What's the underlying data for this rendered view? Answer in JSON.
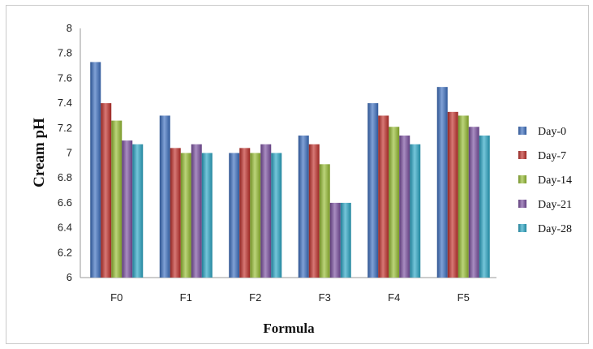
{
  "chart_data": {
    "type": "bar",
    "categories": [
      "F0",
      "F1",
      "F2",
      "F3",
      "F4",
      "F5"
    ],
    "series": [
      {
        "name": "Day-0",
        "color": "#3c6fc0",
        "values": [
          7.73,
          7.3,
          7.0,
          7.14,
          7.4,
          7.53
        ]
      },
      {
        "name": "Day-7",
        "color": "#c1302b",
        "values": [
          7.4,
          7.04,
          7.04,
          7.07,
          7.3,
          7.33
        ]
      },
      {
        "name": "Day-14",
        "color": "#96bd32",
        "values": [
          7.26,
          7.0,
          7.0,
          6.91,
          7.21,
          7.3
        ]
      },
      {
        "name": "Day-21",
        "color": "#7a4fa0",
        "values": [
          7.1,
          7.07,
          7.07,
          6.6,
          7.14,
          7.21
        ]
      },
      {
        "name": "Day-28",
        "color": "#2aa7c6",
        "values": [
          7.07,
          7.0,
          7.0,
          6.6,
          7.07,
          7.14
        ]
      }
    ],
    "xlabel": "Formula",
    "ylabel": "Cream pH",
    "ylim": [
      6,
      8
    ],
    "yticks": [
      "6",
      "6.2",
      "6.4",
      "6.6",
      "6.8",
      "7",
      "7.2",
      "7.4",
      "7.6",
      "7.8",
      "8"
    ],
    "grid": false,
    "legend_position": "right"
  }
}
